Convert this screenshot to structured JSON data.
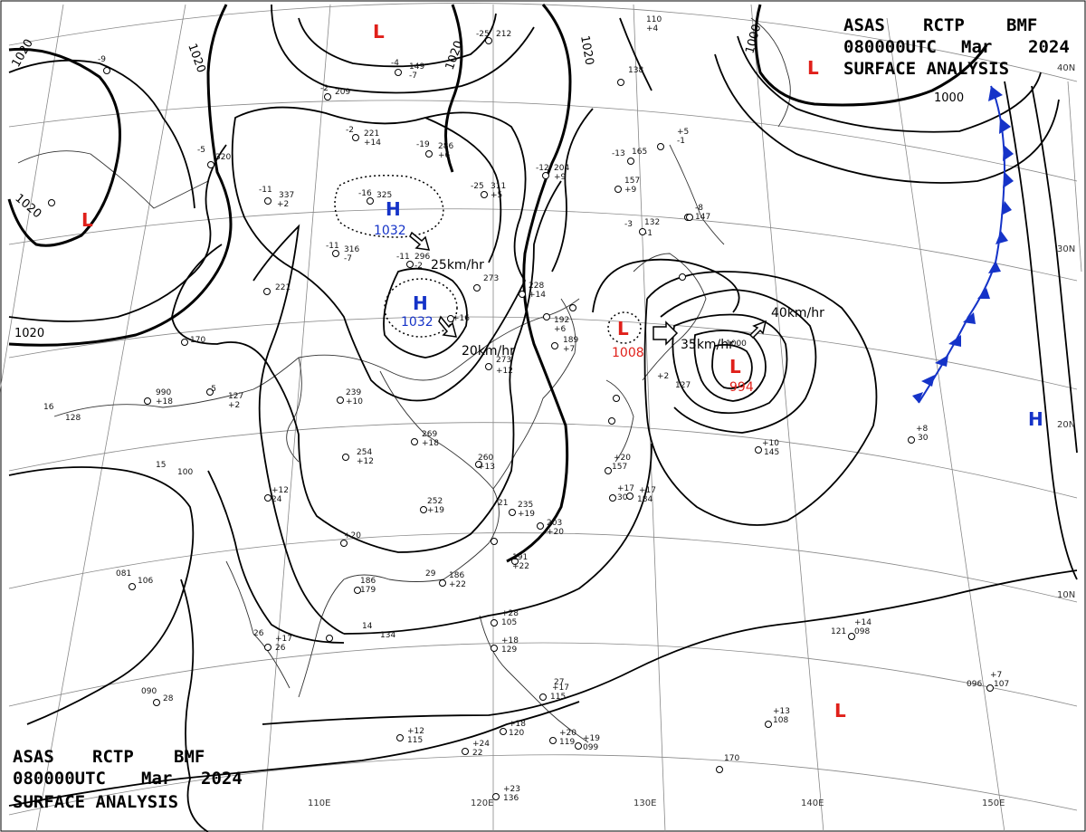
{
  "header": {
    "line1": [
      "ASAS",
      "RCTP",
      "BMF"
    ],
    "line2": [
      "080000UTC",
      "Mar",
      "2024"
    ],
    "line3": "SURFACE ANALYSIS"
  },
  "colors": {
    "low": "#e0201a",
    "high": "#1533c8",
    "front": "#1533c8",
    "isobar": "#000000",
    "grid": "#888888"
  },
  "lon_labels": [
    "110E",
    "120E",
    "130E",
    "140E",
    "150E"
  ],
  "lat_labels": [
    "40N",
    "30N",
    "20N",
    "10N"
  ],
  "isobar_labels": [
    "1020",
    "1020",
    "1020",
    "1020",
    "1020",
    "1020",
    "1000",
    "1000",
    "1000"
  ],
  "pressure_systems": [
    {
      "type": "L",
      "value": ""
    },
    {
      "type": "L",
      "value": ""
    },
    {
      "type": "L",
      "value": ""
    },
    {
      "type": "H",
      "value": "1032"
    },
    {
      "type": "H",
      "value": "1032"
    },
    {
      "type": "L",
      "value": "1008"
    },
    {
      "type": "L",
      "value": "994"
    },
    {
      "type": "H",
      "value": ""
    },
    {
      "type": "L",
      "value": ""
    }
  ],
  "movement_labels": [
    "25km/hr",
    "20km/hr",
    "35km/hr",
    "40km/hr"
  ],
  "stations": [
    "-9",
    "-5",
    "320",
    "-11",
    "337",
    "+2",
    "-11",
    "316",
    "-7",
    "-16",
    "325",
    "-4",
    "149",
    "-7",
    "-2",
    "209",
    "-2",
    "221",
    "+14",
    "-19",
    "286",
    "+6",
    "-25",
    "311",
    "+5",
    "-25",
    "212",
    "-12",
    "204",
    "+9",
    "-13",
    "165",
    "157",
    "+9",
    "-3",
    "132",
    "-1",
    "110",
    "+4",
    "138",
    "-11",
    "296",
    "-2",
    "273",
    "+16",
    "273",
    "+12",
    "228",
    "+14",
    "192",
    "+6",
    "189",
    "+7",
    "-5",
    "127",
    "+2",
    "239",
    "+10",
    "269",
    "+18",
    "254",
    "+12",
    "260",
    "+13",
    "252",
    "+19",
    "990",
    "+18",
    "16",
    "128",
    "15",
    "100",
    "170",
    "221",
    "235",
    "+19",
    "203",
    "+20",
    "191",
    "+22",
    "186",
    "+22",
    "186",
    "179",
    "+20",
    "134",
    "+28",
    "105",
    "+18",
    "129",
    "+17",
    "115",
    "+18",
    "120",
    "+20",
    "119",
    "+19",
    "099",
    "+23",
    "136",
    "+12",
    "115",
    "+24",
    "22",
    "081",
    "106",
    "+17",
    "26",
    "090",
    "28",
    "121",
    "+14",
    "098",
    "+10",
    "145",
    "+8",
    "30",
    "096",
    "+7",
    "107",
    "+13",
    "108",
    "170",
    "+20",
    "157",
    "+17",
    "184",
    "+17",
    "30",
    "-8",
    "147",
    "+5",
    "-1",
    "+2",
    "127",
    "+12",
    "24",
    "26",
    "14",
    "21",
    "29",
    "27"
  ]
}
